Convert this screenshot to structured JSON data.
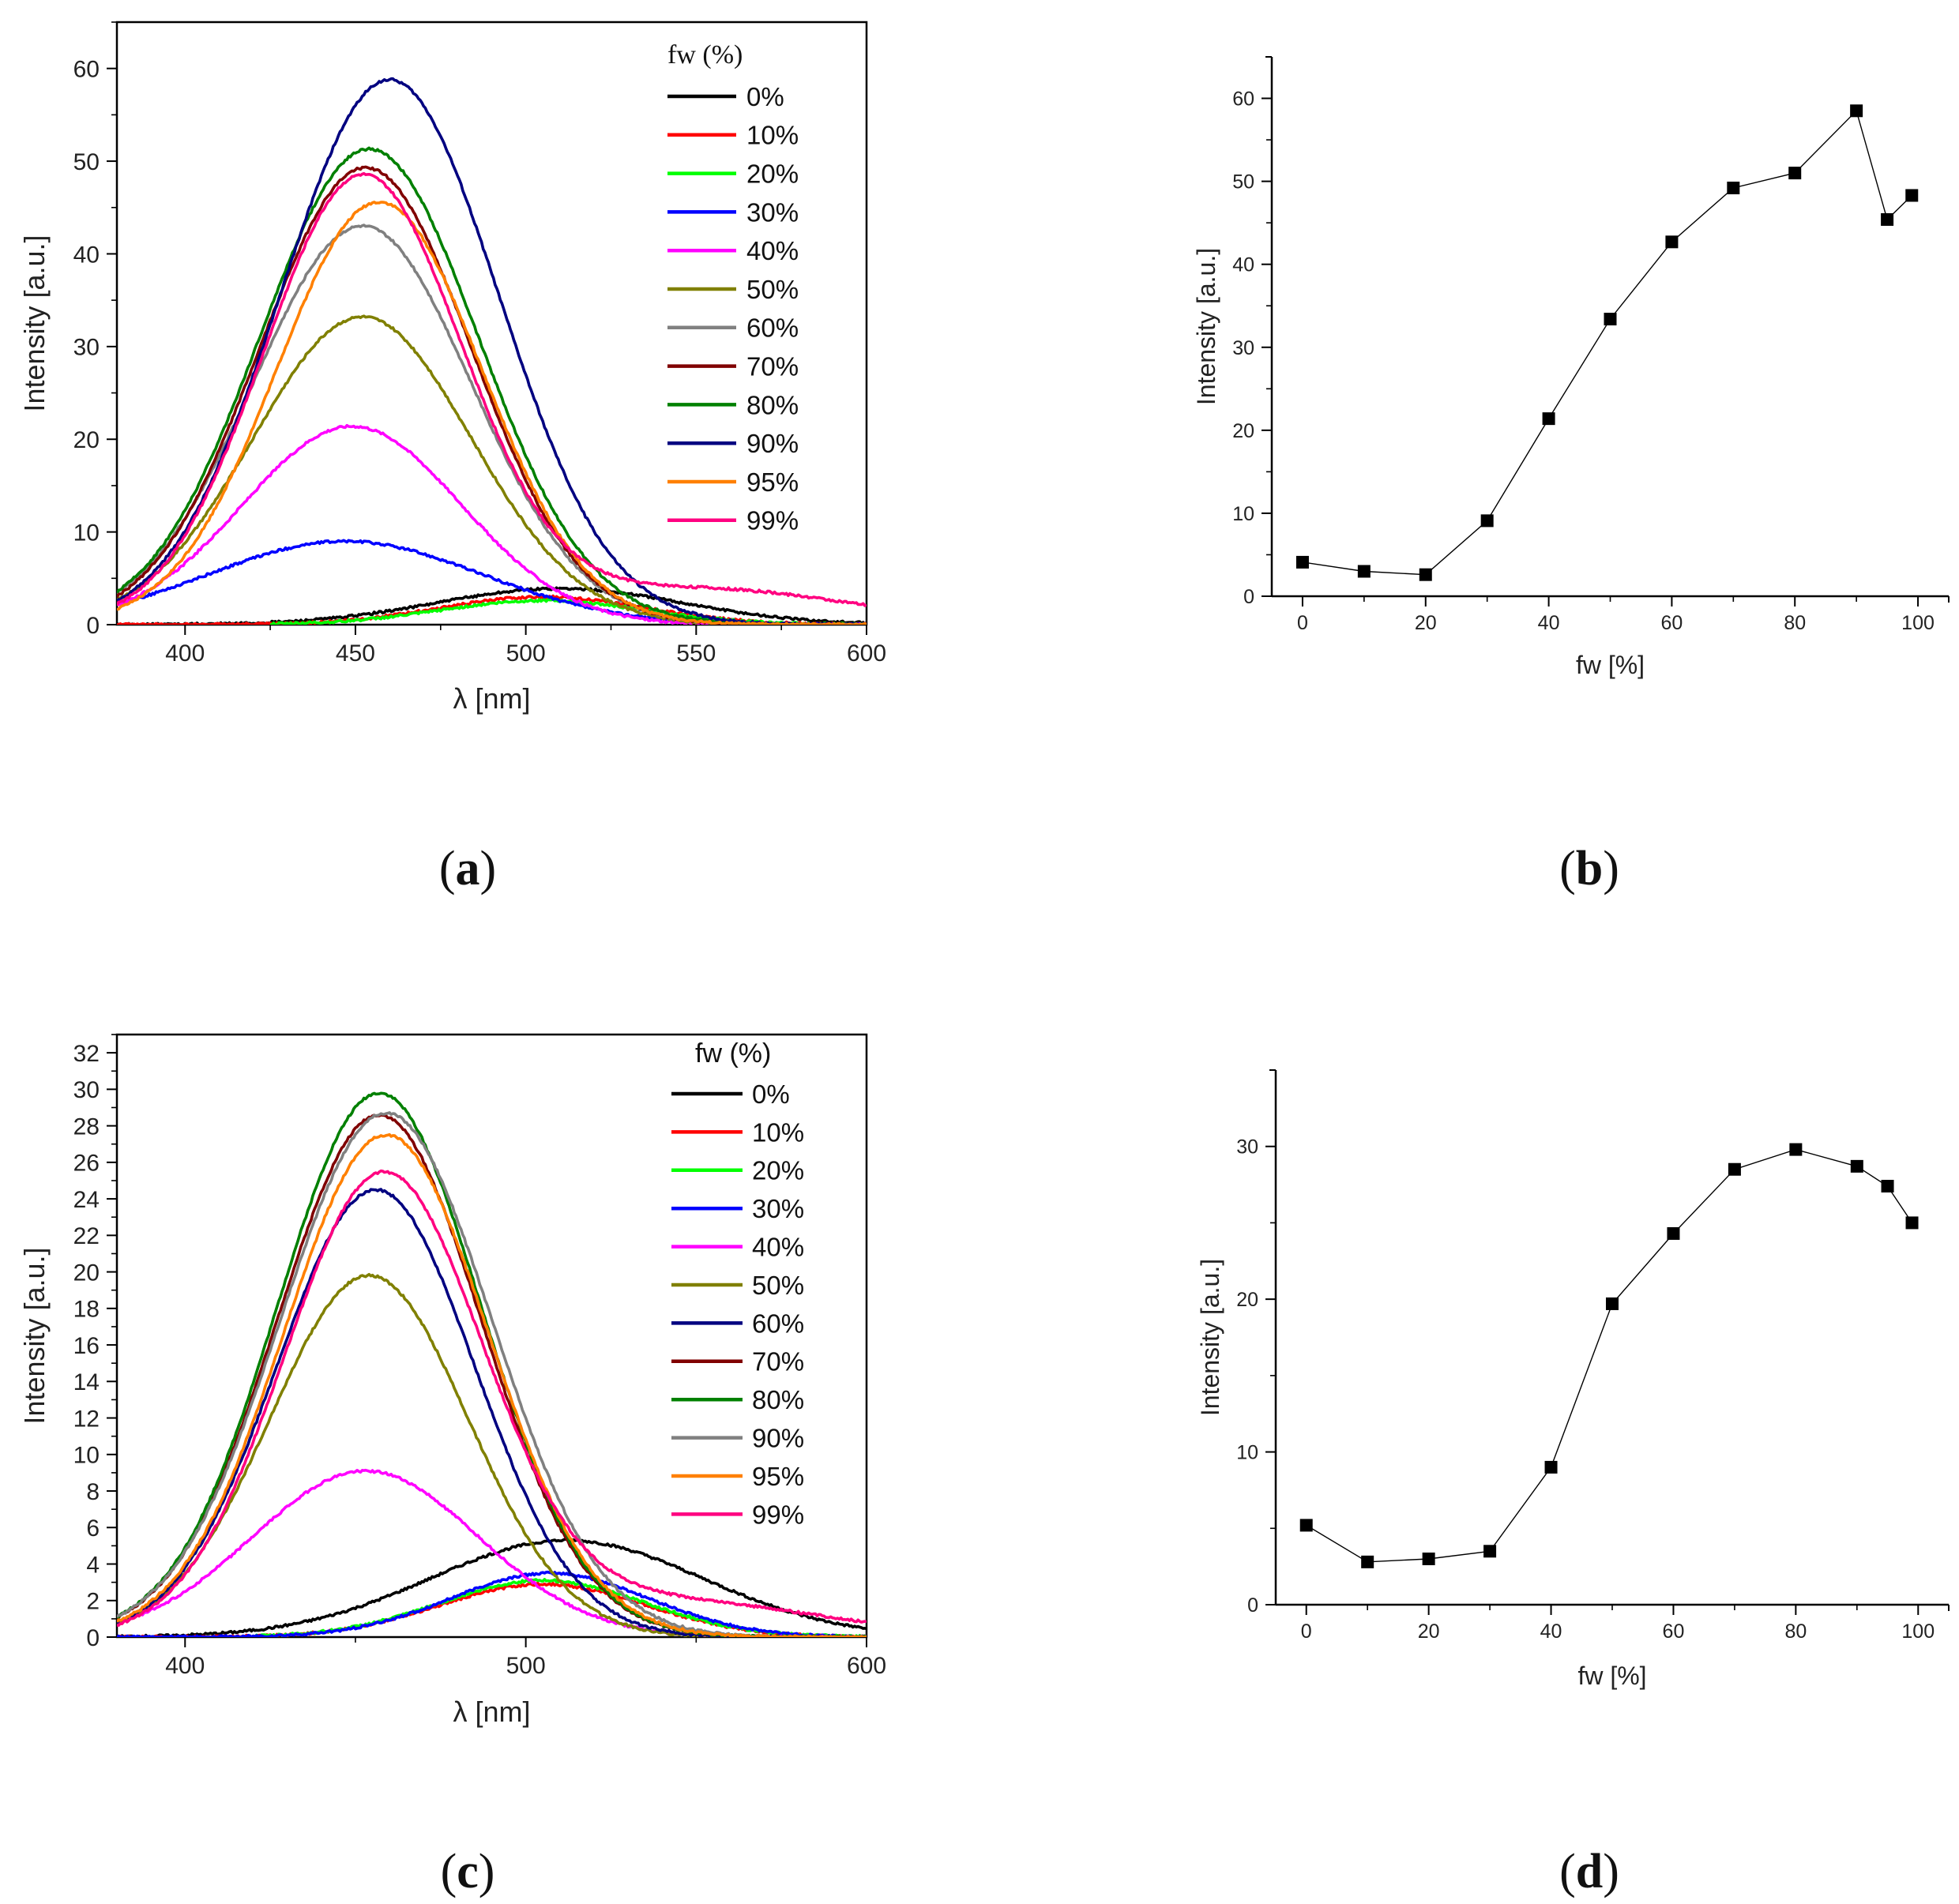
{
  "chart_data": [
    {
      "id": "a",
      "type": "line",
      "panel_label": "(a)",
      "panel_letter": "a",
      "xlabel": "λ [nm]",
      "ylabel": "Intensity [a.u.]",
      "xlim": [
        380,
        600
      ],
      "ylim": [
        0,
        65
      ],
      "xticks": [
        400,
        450,
        500,
        550,
        600
      ],
      "yticks": [
        0,
        10,
        20,
        30,
        40,
        50,
        60
      ],
      "legend_title": "fw (%)",
      "legend_position": "top-right",
      "series": [
        {
          "name": "0%",
          "color": "#000000",
          "components": [
            {
              "type": "gauss",
              "amp": 3.9,
              "mu": 510,
              "sigma": 36
            }
          ]
        },
        {
          "name": "10%",
          "color": "#ff0000",
          "components": [
            {
              "type": "gauss",
              "amp": 3.0,
              "mu": 505,
              "sigma": 30
            }
          ]
        },
        {
          "name": "20%",
          "color": "#00ff00",
          "start": 425,
          "components": [
            {
              "type": "gauss",
              "amp": 2.6,
              "mu": 505,
              "sigma": 30
            }
          ]
        },
        {
          "name": "30%",
          "color": "#0000ff",
          "components": [
            {
              "type": "gauss",
              "amp": 9.0,
              "mu": 447,
              "sigma": 40
            }
          ]
        },
        {
          "name": "40%",
          "color": "#ff00ff",
          "components": [
            {
              "type": "gauss",
              "amp": 21.4,
              "mu": 449,
              "sigma": 32
            }
          ]
        },
        {
          "name": "50%",
          "color": "#808000",
          "components": [
            {
              "type": "gauss",
              "amp": 33.2,
              "mu": 452,
              "sigma": 32
            }
          ]
        },
        {
          "name": "60%",
          "color": "#808080",
          "components": [
            {
              "type": "gauss",
              "amp": 43.0,
              "mu": 452,
              "sigma": 32
            }
          ]
        },
        {
          "name": "70%",
          "color": "#800000",
          "components": [
            {
              "type": "gauss",
              "amp": 49.3,
              "mu": 453,
              "sigma": 31
            }
          ]
        },
        {
          "name": "80%",
          "color": "#008000",
          "components": [
            {
              "type": "gauss",
              "amp": 51.3,
              "mu": 454,
              "sigma": 32
            }
          ]
        },
        {
          "name": "90%",
          "color": "#000080",
          "components": [
            {
              "type": "gauss",
              "amp": 58.8,
              "mu": 460,
              "sigma": 32
            }
          ]
        },
        {
          "name": "95%",
          "color": "#ff8000",
          "components": [
            {
              "type": "gauss",
              "amp": 45.6,
              "mu": 457,
              "sigma": 30
            }
          ]
        },
        {
          "name": "99%",
          "color": "#ff0080",
          "components": [
            {
              "type": "gauss",
              "amp": 48.2,
              "mu": 452,
              "sigma": 29
            },
            {
              "type": "gauss",
              "amp": 3.9,
              "mu": 550,
              "sigma": 45
            }
          ]
        }
      ]
    },
    {
      "id": "b",
      "type": "scatter",
      "panel_label": "(b)",
      "panel_letter": "b",
      "xlabel": "fw [%]",
      "ylabel": "Intensity [a.u.]",
      "xlim": [
        -5,
        105
      ],
      "ylim": [
        0,
        65
      ],
      "xticks": [
        0,
        20,
        40,
        60,
        80,
        100
      ],
      "yticks": [
        0,
        10,
        20,
        30,
        40,
        50,
        60
      ],
      "x": [
        0,
        10,
        20,
        30,
        40,
        50,
        60,
        70,
        80,
        90,
        95,
        99
      ],
      "y": [
        4.1,
        3.0,
        2.6,
        9.1,
        21.4,
        33.4,
        42.7,
        49.2,
        51.0,
        58.5,
        45.4,
        48.3
      ]
    },
    {
      "id": "c",
      "type": "line",
      "panel_label": "(c)",
      "panel_letter": "c",
      "xlabel": "λ [nm]",
      "ylabel": "Intensity [a.u.]",
      "xlim": [
        380,
        600
      ],
      "ylim": [
        0,
        33
      ],
      "xticks": [
        400,
        500,
        600
      ],
      "yticks": [
        0,
        2,
        4,
        6,
        8,
        10,
        12,
        14,
        16,
        18,
        20,
        22,
        24,
        26,
        28,
        30,
        32
      ],
      "legend_title": "fw (%)",
      "legend_position": "top-right",
      "series": [
        {
          "name": "0%",
          "color": "#000000",
          "components": [
            {
              "type": "gauss",
              "amp": 5.3,
              "mu": 512,
              "sigma": 40
            }
          ]
        },
        {
          "name": "10%",
          "color": "#ff0000",
          "components": [
            {
              "type": "gauss",
              "amp": 2.9,
              "mu": 505,
              "sigma": 30
            }
          ]
        },
        {
          "name": "20%",
          "color": "#00ff00",
          "start": 420,
          "components": [
            {
              "type": "gauss",
              "amp": 3.1,
              "mu": 505,
              "sigma": 30
            }
          ]
        },
        {
          "name": "30%",
          "color": "#0000ff",
          "components": [
            {
              "type": "gauss",
              "amp": 3.5,
              "mu": 507,
              "sigma": 29
            }
          ]
        },
        {
          "name": "40%",
          "color": "#ff00ff",
          "components": [
            {
              "type": "gauss",
              "amp": 9.1,
              "mu": 453,
              "sigma": 33
            }
          ]
        },
        {
          "name": "50%",
          "color": "#808000",
          "components": [
            {
              "type": "gauss",
              "amp": 19.8,
              "mu": 454,
              "sigma": 29
            }
          ]
        },
        {
          "name": "60%",
          "color": "#000080",
          "components": [
            {
              "type": "gauss",
              "amp": 24.5,
              "mu": 456,
              "sigma": 29
            }
          ]
        },
        {
          "name": "70%",
          "color": "#800000",
          "components": [
            {
              "type": "gauss",
              "amp": 28.6,
              "mu": 457,
              "sigma": 30
            }
          ]
        },
        {
          "name": "80%",
          "color": "#008000",
          "components": [
            {
              "type": "gauss",
              "amp": 29.8,
              "mu": 457,
              "sigma": 30
            }
          ]
        },
        {
          "name": "90%",
          "color": "#808080",
          "components": [
            {
              "type": "gauss",
              "amp": 28.7,
              "mu": 459,
              "sigma": 31
            }
          ]
        },
        {
          "name": "95%",
          "color": "#ff8000",
          "components": [
            {
              "type": "gauss",
              "amp": 27.5,
              "mu": 459,
              "sigma": 30
            }
          ]
        },
        {
          "name": "99%",
          "color": "#ff0080",
          "components": [
            {
              "type": "gauss",
              "amp": 25.1,
              "mu": 458,
              "sigma": 29
            },
            {
              "type": "gauss",
              "amp": 2.0,
              "mu": 540,
              "sigma": 45
            }
          ]
        }
      ]
    },
    {
      "id": "d",
      "type": "scatter",
      "panel_label": "(d)",
      "panel_letter": "d",
      "xlabel": "fw [%]",
      "ylabel": "Intensity [a.u.]",
      "xlim": [
        -5,
        105
      ],
      "ylim": [
        0,
        35
      ],
      "xticks": [
        0,
        20,
        40,
        60,
        80,
        100
      ],
      "yticks": [
        0,
        10,
        20,
        30
      ],
      "x": [
        0,
        10,
        20,
        30,
        40,
        50,
        60,
        70,
        80,
        90,
        95,
        99
      ],
      "y": [
        5.2,
        2.8,
        3.0,
        3.5,
        9.0,
        19.7,
        24.3,
        28.5,
        29.8,
        28.7,
        27.4,
        25.0
      ]
    }
  ]
}
